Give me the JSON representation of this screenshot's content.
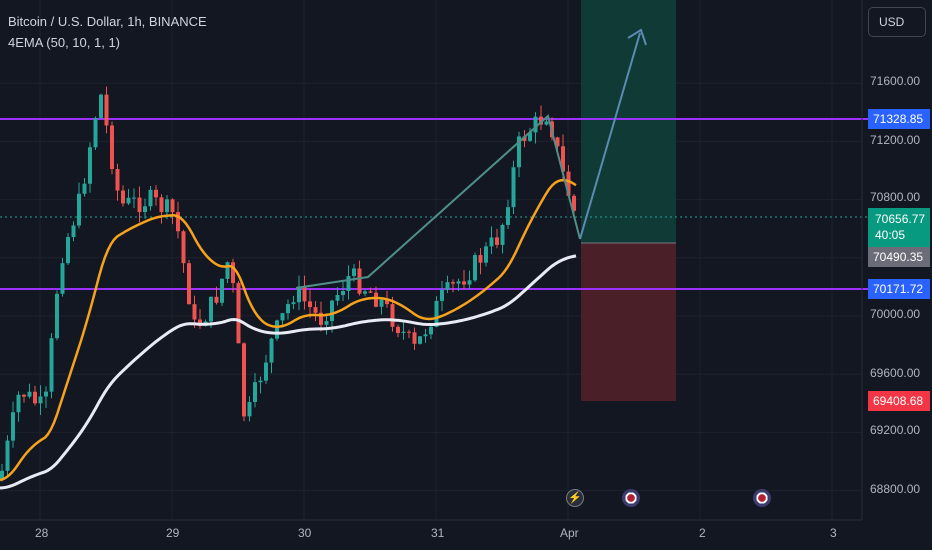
{
  "legend": {
    "symbol": "Bitcoin / U.S. Dollar, 1h, BINANCE",
    "indicator": "4EMA (50, 10, 1, 1)"
  },
  "currency_button": "USD",
  "price_axis": {
    "ticks": [
      "71600.00",
      "71200.00",
      "70800.00",
      "70000.00",
      "69600.00",
      "69200.00",
      "68800.00"
    ]
  },
  "time_axis": {
    "ticks": [
      "28",
      "29",
      "30",
      "31",
      "Apr",
      "2",
      "3"
    ]
  },
  "price_labels": {
    "upper_line": "71328.85",
    "current_price": "70656.77",
    "countdown": "40:05",
    "entry": "70490.35",
    "lower_line": "70171.72",
    "stop": "69408.68"
  },
  "colors": {
    "background": "#131722",
    "horizontal_line": "#9b30ff",
    "up_candle": "#26a69a",
    "down_candle": "#ef5350",
    "ema_fast": "#f7a21b",
    "ema_slow": "#e8eaf4",
    "target_zone": "#0f3a35",
    "stop_zone": "#4a1f27",
    "projection_arrow": "#5b8bb0"
  },
  "icons": [
    "lightning-event-icon",
    "us-flag-event-icon",
    "us-flag-event-icon"
  ]
}
